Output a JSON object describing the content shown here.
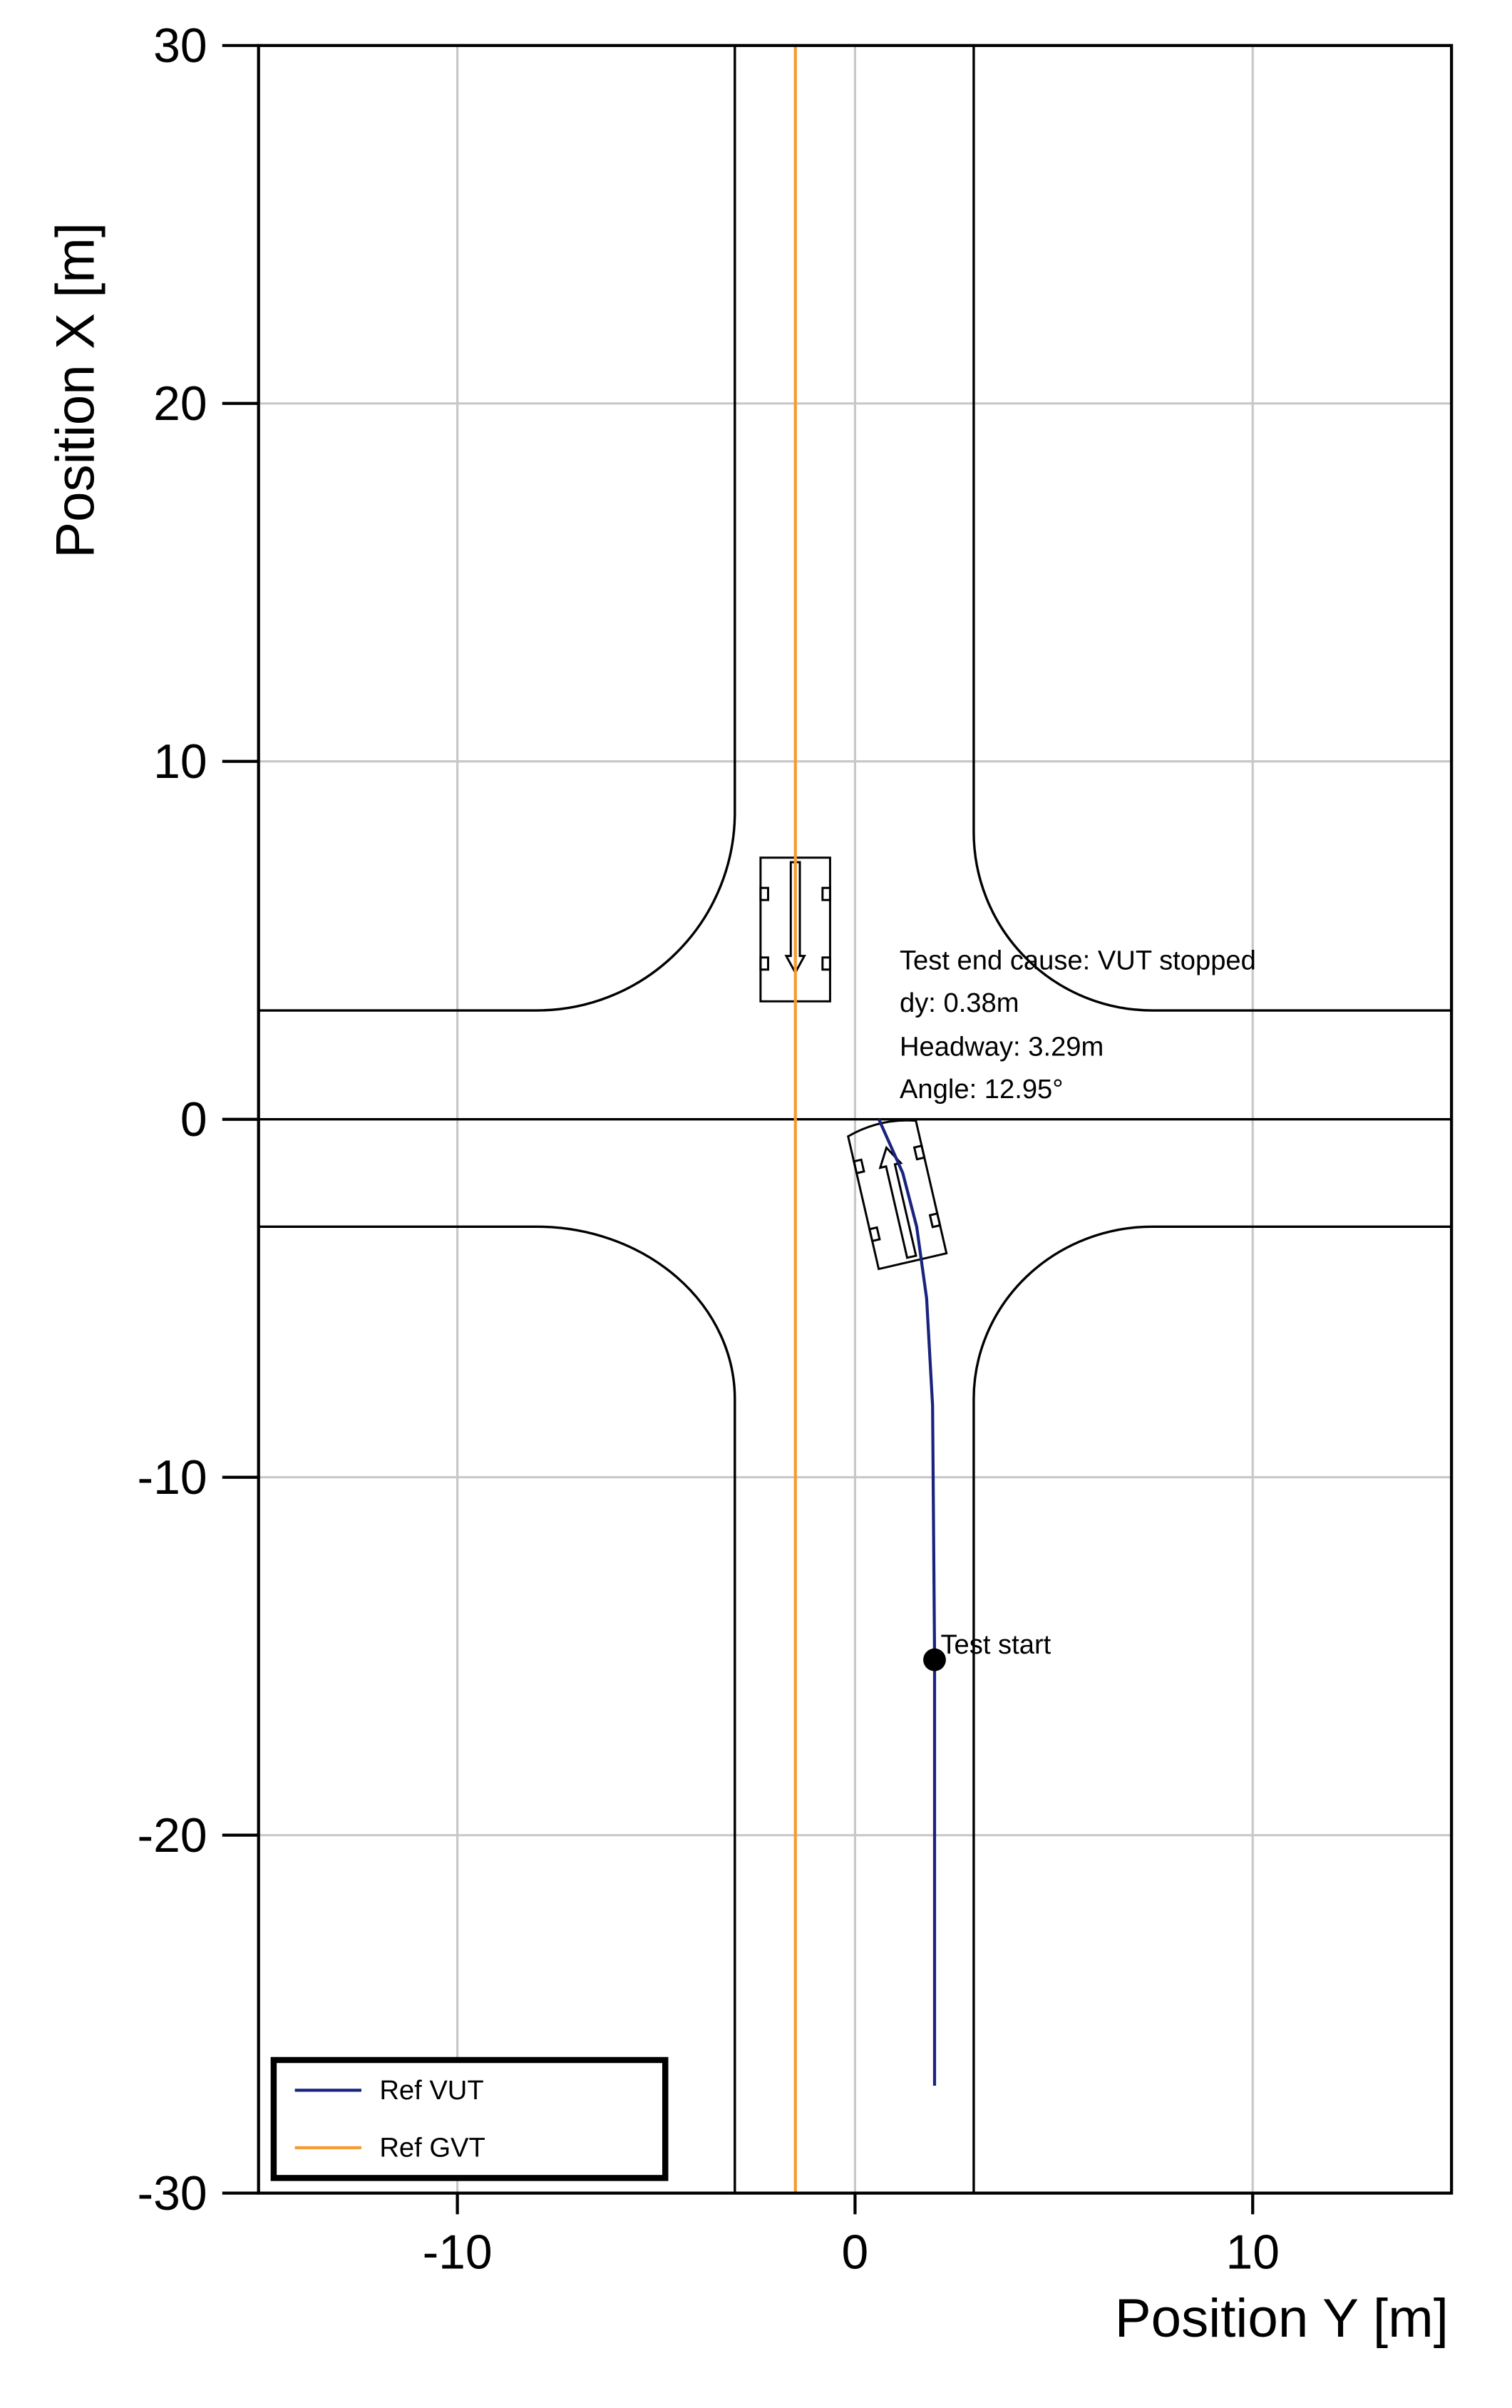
{
  "chart_data": {
    "type": "line",
    "xlabel": "Position Y [m]",
    "ylabel": "Position X [m]",
    "xlim": [
      -15,
      15
    ],
    "ylim": [
      -30,
      30
    ],
    "xticks": [
      -10,
      0,
      10
    ],
    "yticks": [
      -30,
      -20,
      -10,
      0,
      10,
      20,
      30
    ],
    "grid": true,
    "legend": "lower left",
    "series": [
      {
        "name": "Ref VUT",
        "color": "#1a237e",
        "x": [
          2.0,
          2.0,
          2.0,
          1.95,
          1.8,
          1.55,
          1.2,
          0.6
        ],
        "y": [
          -27,
          -20,
          -15,
          -8,
          -5,
          -3,
          -1.5,
          0
        ]
      },
      {
        "name": "Ref GVT",
        "color": "#f39c34",
        "x": [
          -1.5,
          -1.5
        ],
        "y": [
          -30,
          30
        ]
      }
    ],
    "points": [
      {
        "label": "Test start",
        "x": 2.0,
        "y": -15.1
      }
    ],
    "annotations": [
      "Test end cause: VUT stopped",
      "dy: 0.38m",
      "Headway: 3.29m",
      "Angle: 12.95°"
    ]
  }
}
